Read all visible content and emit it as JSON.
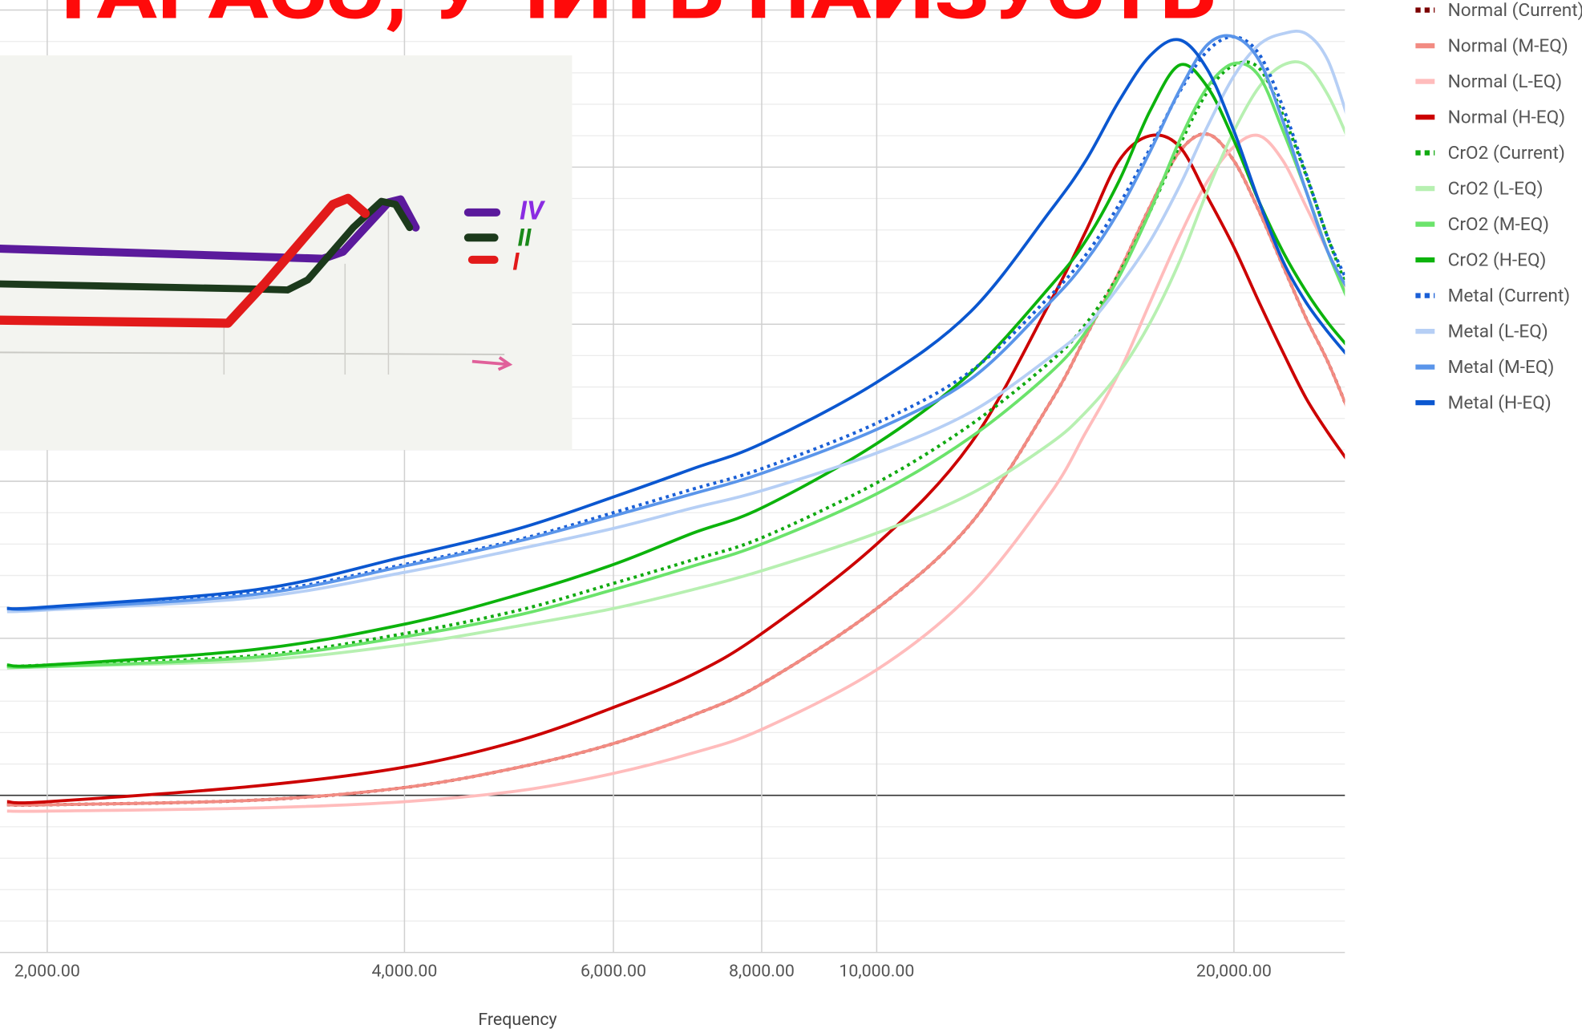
{
  "chart_data": {
    "type": "line",
    "title": "ТАРАСЭ, УЧИТЬ НАИЗУСТЬ",
    "x_label": "Frequency",
    "log_x": true,
    "grid": true,
    "minor_grid": 5,
    "legend": "right",
    "x": [
      1850,
      2000,
      3000,
      4000,
      5000,
      6000,
      7000,
      8000,
      10000,
      12000,
      14000,
      15000,
      16000,
      17000,
      18000,
      19000,
      20000,
      21000,
      22000,
      23000,
      24000,
      25000
    ],
    "xlim": [
      1850,
      25000
    ],
    "xticks": [
      {
        "value": 2000,
        "label": "2,000.00"
      },
      {
        "value": 4000,
        "label": "4,000.00"
      },
      {
        "value": 6000,
        "label": "6,000.00"
      },
      {
        "value": 8000,
        "label": "8,000.00"
      },
      {
        "value": 10000,
        "label": "10,000.00"
      },
      {
        "value": 20000,
        "label": "20,000.00"
      }
    ],
    "ylim": [
      -1,
      5
    ],
    "yticks": [
      -1,
      0,
      1,
      2,
      3,
      4,
      5
    ],
    "series": [
      {
        "name": "Normal (Current)",
        "color": "#7b0000",
        "style": "dotted",
        "values": [
          -0.06,
          -0.06,
          -0.03,
          0.05,
          0.18,
          0.33,
          0.51,
          0.71,
          1.19,
          1.73,
          2.5,
          2.92,
          3.33,
          3.75,
          4.1,
          4.21,
          4.04,
          3.72,
          3.37,
          3.04,
          2.76,
          2.44
        ]
      },
      {
        "name": "Normal (M-EQ)",
        "color": "#f28b82",
        "style": "solid",
        "values": [
          -0.06,
          -0.06,
          -0.03,
          0.05,
          0.18,
          0.33,
          0.51,
          0.71,
          1.19,
          1.73,
          2.5,
          2.92,
          3.33,
          3.75,
          4.1,
          4.21,
          4.04,
          3.72,
          3.37,
          3.04,
          2.76,
          2.44
        ]
      },
      {
        "name": "Normal (L-EQ)",
        "color": "#ffbcbc",
        "style": "solid",
        "values": [
          -0.1,
          -0.1,
          -0.08,
          -0.04,
          0.03,
          0.14,
          0.27,
          0.42,
          0.8,
          1.28,
          1.92,
          2.31,
          2.69,
          3.14,
          3.56,
          3.91,
          4.13,
          4.2,
          4.04,
          3.75,
          3.46,
          3.17
        ]
      },
      {
        "name": "Normal (H-EQ)",
        "color": "#cc0000",
        "style": "solid",
        "values": [
          -0.04,
          -0.04,
          0.06,
          0.18,
          0.35,
          0.56,
          0.77,
          1.03,
          1.6,
          2.24,
          3.14,
          3.59,
          4.04,
          4.2,
          4.13,
          3.81,
          3.49,
          3.14,
          2.82,
          2.53,
          2.31,
          2.12
        ]
      },
      {
        "name": "CrO2 (Current)",
        "color": "#11aa11",
        "style": "dotted",
        "values": [
          0.82,
          0.83,
          0.89,
          1.03,
          1.18,
          1.35,
          1.5,
          1.64,
          1.99,
          2.36,
          2.76,
          3.0,
          3.32,
          3.72,
          4.14,
          4.48,
          4.65,
          4.63,
          4.33,
          3.95,
          3.55,
          3.2
        ]
      },
      {
        "name": "CrO2 (L-EQ)",
        "color": "#b7f0b1",
        "style": "solid",
        "values": [
          0.81,
          0.82,
          0.86,
          0.96,
          1.08,
          1.19,
          1.31,
          1.43,
          1.67,
          1.92,
          2.24,
          2.44,
          2.69,
          3.01,
          3.4,
          3.85,
          4.23,
          4.51,
          4.65,
          4.65,
          4.46,
          4.17
        ]
      },
      {
        "name": "CrO2 (M-EQ)",
        "color": "#6be36b",
        "style": "solid",
        "values": [
          0.82,
          0.82,
          0.88,
          1.01,
          1.15,
          1.31,
          1.46,
          1.6,
          1.92,
          2.28,
          2.69,
          2.95,
          3.3,
          3.72,
          4.17,
          4.51,
          4.66,
          4.58,
          4.23,
          3.85,
          3.46,
          3.14
        ]
      },
      {
        "name": "CrO2 (H-EQ)",
        "color": "#0cb30c",
        "style": "solid",
        "values": [
          0.83,
          0.83,
          0.93,
          1.09,
          1.28,
          1.47,
          1.67,
          1.83,
          2.24,
          2.69,
          3.24,
          3.53,
          3.91,
          4.36,
          4.65,
          4.51,
          4.17,
          3.78,
          3.46,
          3.21,
          3.01,
          2.85
        ]
      },
      {
        "name": "Metal (Current)",
        "color": "#1a5fd6",
        "style": "dotted",
        "values": [
          1.19,
          1.19,
          1.29,
          1.47,
          1.63,
          1.8,
          1.95,
          2.08,
          2.37,
          2.7,
          3.18,
          3.44,
          3.76,
          4.12,
          4.48,
          4.74,
          4.83,
          4.72,
          4.38,
          3.96,
          3.55,
          3.25
        ]
      },
      {
        "name": "Metal (L-EQ)",
        "color": "#b6cff5",
        "style": "solid",
        "values": [
          1.17,
          1.18,
          1.26,
          1.42,
          1.57,
          1.7,
          1.83,
          1.94,
          2.18,
          2.44,
          2.79,
          2.98,
          3.24,
          3.53,
          3.88,
          4.26,
          4.58,
          4.78,
          4.85,
          4.85,
          4.68,
          4.29
        ]
      },
      {
        "name": "Metal (M-EQ)",
        "color": "#5a95ea",
        "style": "solid",
        "values": [
          1.19,
          1.19,
          1.28,
          1.46,
          1.62,
          1.78,
          1.92,
          2.05,
          2.33,
          2.65,
          3.14,
          3.4,
          3.72,
          4.1,
          4.49,
          4.78,
          4.83,
          4.68,
          4.29,
          3.85,
          3.46,
          3.21
        ]
      },
      {
        "name": "Metal (H-EQ)",
        "color": "#0b57d0",
        "style": "solid",
        "values": [
          1.19,
          1.2,
          1.31,
          1.52,
          1.7,
          1.9,
          2.08,
          2.24,
          2.63,
          3.08,
          3.72,
          4.04,
          4.42,
          4.71,
          4.81,
          4.62,
          4.23,
          3.78,
          3.4,
          3.14,
          2.95,
          2.79
        ]
      }
    ]
  },
  "inset": {
    "labels": [
      "IV",
      "II",
      "I"
    ]
  }
}
